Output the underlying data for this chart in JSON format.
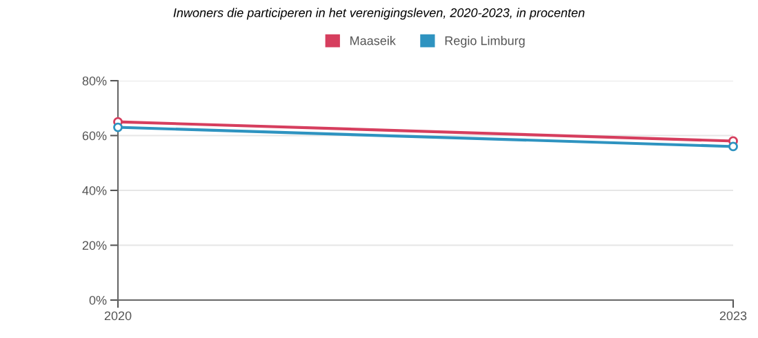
{
  "chart_data": {
    "type": "line",
    "title": "Inwoners die participeren in het verenigingsleven, 2020-2023, in procenten",
    "x": [
      2020,
      2023
    ],
    "series": [
      {
        "name": "Maaseik",
        "color": "#d63e5e",
        "values": [
          65,
          58
        ]
      },
      {
        "name": "Regio Limburg",
        "color": "#2e93c0",
        "values": [
          63,
          56
        ]
      }
    ],
    "xlim": [
      2020,
      2023
    ],
    "xticks": [
      2020,
      2023
    ],
    "ylim": [
      0,
      80
    ],
    "yticks": [
      {
        "value": 0,
        "label": "0%"
      },
      {
        "value": 20,
        "label": "20%"
      },
      {
        "value": 40,
        "label": "40%"
      },
      {
        "value": 60,
        "label": "60%"
      },
      {
        "value": 80,
        "label": "80%"
      }
    ],
    "grid": "y",
    "legend": "top",
    "marker": "circle",
    "line_style": "solid"
  }
}
